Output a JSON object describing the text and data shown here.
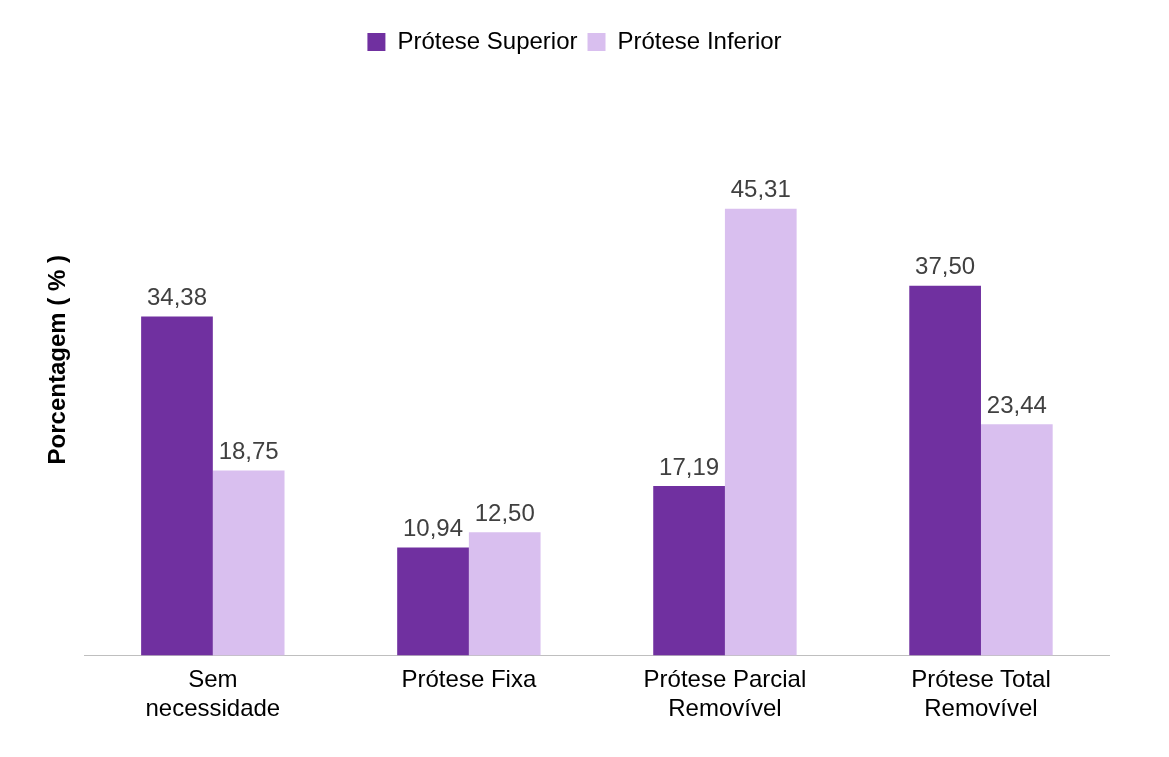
{
  "chart_data": {
    "type": "bar",
    "ylabel": "Porcentagem ( % )",
    "categories": [
      "Sem necessidade",
      "Prótese Fixa",
      "Prótese Parcial Removível",
      "Prótese Total Removível"
    ],
    "series": [
      {
        "name": "Prótese Superior",
        "color": "#7030a0",
        "values": [
          34.38,
          10.94,
          17.19,
          37.5
        ],
        "value_labels": [
          "34,38",
          "10,94",
          "17,19",
          "37,50"
        ]
      },
      {
        "name": "Prótese Inferior",
        "color": "#d9bfef",
        "values": [
          18.75,
          12.5,
          45.31,
          23.44
        ],
        "value_labels": [
          "18,75",
          "12,50",
          "45,31",
          "23,44"
        ]
      }
    ],
    "legend": "top",
    "grid": false
  }
}
